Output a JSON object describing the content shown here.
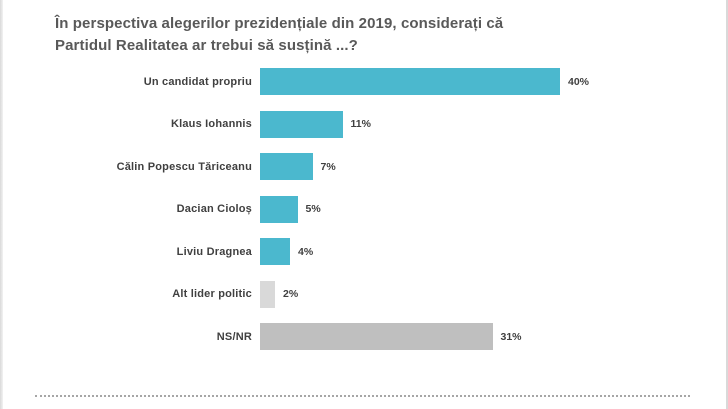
{
  "slide": {
    "title_line1": "În perspectiva alegerilor prezidențiale din 2019, considerați că",
    "title_line2": "Partidul Realitatea ar trebui să susțină ...?"
  },
  "chart_data": {
    "type": "bar",
    "orientation": "horizontal",
    "title": "În perspectiva alegerilor prezidențiale din 2019, considerați că Partidul Realitatea ar trebui să susțină ...?",
    "categories": [
      "Un candidat propriu",
      "Klaus Iohannis",
      "Călin Popescu Tăriceanu",
      "Dacian Cioloș",
      "Liviu Dragnea",
      "Alt lider politic",
      "NS/NR"
    ],
    "values": [
      40,
      11,
      7,
      5,
      4,
      2,
      31
    ],
    "value_labels": [
      "40%",
      "11%",
      "7%",
      "5%",
      "4%",
      "2%",
      "31%"
    ],
    "bar_colors": [
      "#4bb8ce",
      "#4bb8ce",
      "#4bb8ce",
      "#4bb8ce",
      "#4bb8ce",
      "#d9d9d9",
      "#bfbfbf"
    ],
    "xlabel": "",
    "ylabel": "",
    "xlim": [
      0,
      42
    ],
    "grid": false,
    "legend": false
  },
  "colors": {
    "accent_teal": "#4bb8ce",
    "gray_bar": "#bfbfbf",
    "light_gray_bar": "#d9d9d9",
    "title_text": "#595959",
    "label_text": "#404040",
    "divider_dots": "#a6a6a6"
  }
}
